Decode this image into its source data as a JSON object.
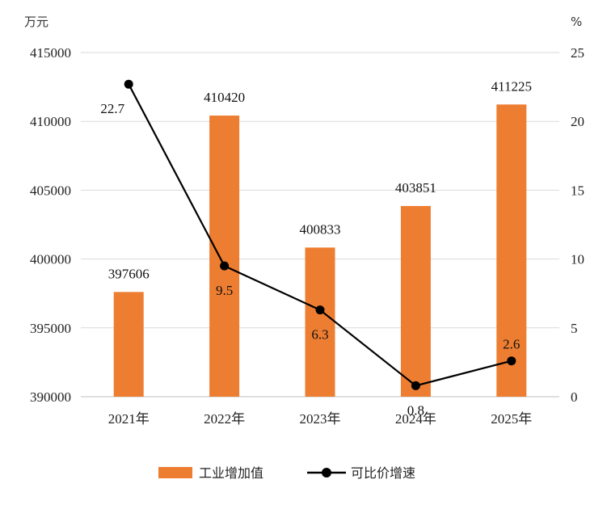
{
  "chart_data": {
    "type": "bar+line",
    "categories": [
      "2021年",
      "2022年",
      "2023年",
      "2024年",
      "2025年"
    ],
    "series": [
      {
        "name": "工业增加值",
        "type": "bar",
        "axis": "left",
        "color": "#ED7D31",
        "values": [
          397606,
          410420,
          400833,
          403851,
          411225
        ],
        "labels": [
          "397606",
          "410420",
          "400833",
          "403851",
          "411225"
        ]
      },
      {
        "name": "可比价增速",
        "type": "line",
        "axis": "right",
        "color": "#000000",
        "values": [
          22.7,
          9.5,
          6.3,
          0.8,
          2.6
        ],
        "labels": [
          "22.7",
          "9.5",
          "6.3",
          "0.8",
          "2.6"
        ]
      }
    ],
    "left_axis": {
      "unit": "万元",
      "ylim": [
        390000,
        415000
      ],
      "ticks": [
        "390000",
        "395000",
        "400000",
        "405000",
        "410000",
        "415000"
      ]
    },
    "right_axis": {
      "unit": "%",
      "ylim": [
        0,
        25
      ],
      "ticks": [
        "0",
        "5",
        "10",
        "15",
        "20",
        "25"
      ]
    },
    "grid": true,
    "legend_position": "bottom"
  }
}
